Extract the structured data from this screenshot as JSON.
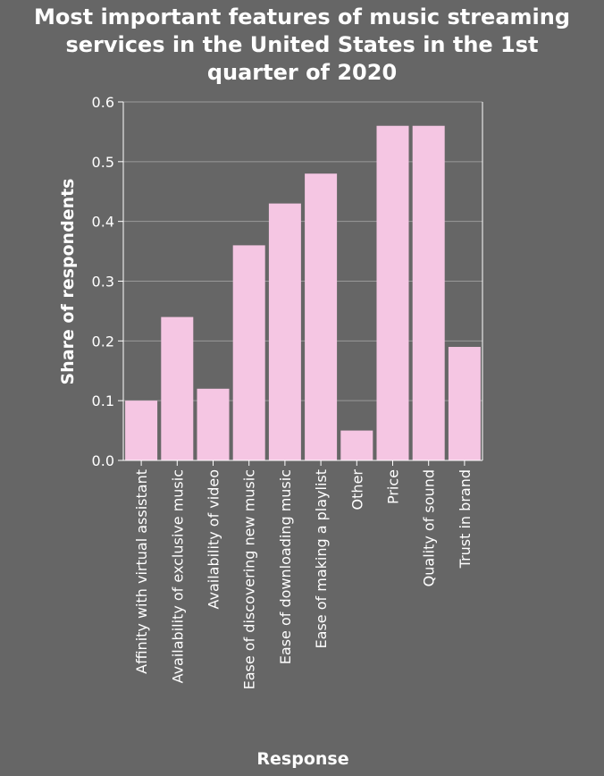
{
  "chart_data": {
    "type": "bar",
    "title_lines": [
      "Most important features of music streaming",
      "services in the United States in the 1st",
      "quarter of 2020"
    ],
    "xlabel": "Response",
    "ylabel": "Share of respondents",
    "categories": [
      "Affinity with virtual assistant",
      "Availability of exclusive music",
      "Availability of video",
      "Ease of discovering new music",
      "Ease of downloading music",
      "Ease of making a playlist",
      "Other",
      "Price",
      "Quality of sound",
      "Trust in brand"
    ],
    "values": [
      0.1,
      0.24,
      0.12,
      0.36,
      0.43,
      0.48,
      0.05,
      0.56,
      0.56,
      0.19
    ],
    "ylim": [
      0,
      0.6
    ],
    "yticks": [
      "0.0",
      "0.1",
      "0.2",
      "0.3",
      "0.4",
      "0.5",
      "0.6"
    ],
    "grid": true,
    "colors": {
      "background": "#666666",
      "bar": "#f5c6e3",
      "grid": "#999999",
      "axis": "#ffffff"
    }
  }
}
